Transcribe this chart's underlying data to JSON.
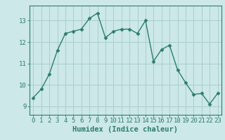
{
  "x": [
    0,
    1,
    2,
    3,
    4,
    5,
    6,
    7,
    8,
    9,
    10,
    11,
    12,
    13,
    14,
    15,
    16,
    17,
    18,
    19,
    20,
    21,
    22,
    23
  ],
  "y": [
    9.4,
    9.8,
    10.5,
    11.6,
    12.4,
    12.5,
    12.6,
    13.1,
    13.35,
    12.2,
    12.5,
    12.6,
    12.6,
    12.4,
    13.0,
    11.1,
    11.65,
    11.85,
    10.7,
    10.1,
    9.55,
    9.6,
    9.1,
    9.6
  ],
  "line_color": "#2e7d6e",
  "marker": "D",
  "markersize": 2.5,
  "linewidth": 1.0,
  "bg_color": "#cce8e8",
  "grid_color": "#aacece",
  "xlabel": "Humidex (Indice chaleur)",
  "xlabel_fontsize": 7.5,
  "tick_fontsize": 6.5,
  "ylim": [
    8.6,
    13.7
  ],
  "yticks": [
    9,
    10,
    11,
    12,
    13
  ],
  "xticks": [
    0,
    1,
    2,
    3,
    4,
    5,
    6,
    7,
    8,
    9,
    10,
    11,
    12,
    13,
    14,
    15,
    16,
    17,
    18,
    19,
    20,
    21,
    22,
    23
  ],
  "xlim": [
    -0.5,
    23.5
  ]
}
